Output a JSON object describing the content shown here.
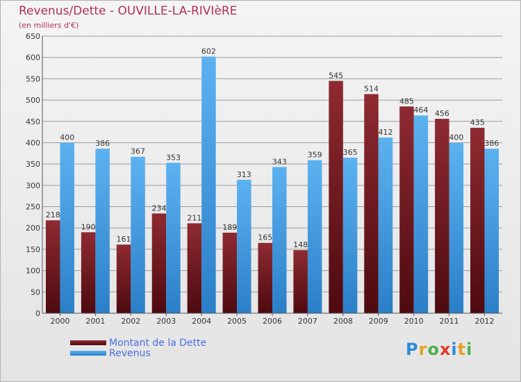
{
  "header": {
    "title": "Revenus/Dette - OUVILLE-LA-RIVIèRE",
    "subtitle": "(en milliers d'€)"
  },
  "legend": {
    "items": [
      {
        "label": "Montant de la Dette",
        "color": "#7a1c24"
      },
      {
        "label": "Revenus",
        "color": "#3d95db"
      }
    ]
  },
  "logo": {
    "letters": [
      "P",
      "r",
      "o",
      "x",
      "i",
      "t",
      "i"
    ],
    "colors": [
      "#2e8bd8",
      "#e8a020",
      "#4caf50",
      "#e23a2a",
      "#2e8bd8",
      "#e8a020",
      "#4caf50"
    ]
  },
  "chart_data": {
    "type": "bar",
    "title": "Revenus/Dette - OUVILLE-LA-RIVIèRE",
    "ylabel": "(en milliers d'€)",
    "categories": [
      "2000",
      "2001",
      "2002",
      "2003",
      "2004",
      "2005",
      "2006",
      "2007",
      "2008",
      "2009",
      "2010",
      "2011",
      "2012"
    ],
    "ylim": [
      0,
      650
    ],
    "yticks": [
      0,
      50,
      100,
      150,
      200,
      250,
      300,
      350,
      400,
      450,
      500,
      550,
      600,
      650
    ],
    "grid": true,
    "legend_position": "bottom-left",
    "series": [
      {
        "name": "Montant de la Dette",
        "color": "#7a1c24",
        "values": [
          218,
          190,
          161,
          234,
          211,
          189,
          165,
          148,
          545,
          514,
          485,
          456,
          435
        ]
      },
      {
        "name": "Revenus",
        "color": "#3d95db",
        "values": [
          400,
          386,
          367,
          353,
          602,
          313,
          343,
          359,
          365,
          412,
          464,
          400,
          386
        ]
      }
    ]
  }
}
